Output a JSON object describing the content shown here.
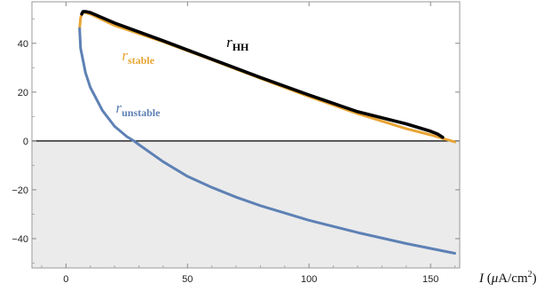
{
  "chart_data": {
    "type": "line",
    "xlabel_parts": [
      "I",
      " (",
      "μ",
      "A/cm",
      "2",
      ")"
    ],
    "xlim": [
      -14,
      162
    ],
    "ylim": [
      -52,
      57
    ],
    "x_ticks": [
      0,
      50,
      100,
      150
    ],
    "y_ticks": [
      40,
      20,
      0,
      -20,
      -40
    ],
    "tick_labels_x": [
      "0",
      "50",
      "100",
      "150"
    ],
    "tick_labels_y": [
      "40",
      "20",
      "0",
      "−20",
      "−40"
    ],
    "negative_region_color": "#ebebeb",
    "grid": false,
    "series": [
      {
        "name": "stable",
        "color": "#e8a534",
        "x": [
          5.6,
          6.0,
          7.0,
          10,
          20,
          40,
          60,
          80,
          100,
          120,
          140,
          150,
          155,
          158,
          160
        ],
        "y": [
          46.0,
          50.5,
          52.8,
          52.0,
          47.3,
          40.6,
          33.2,
          25.6,
          18.2,
          11.2,
          5.0,
          2.5,
          1.0,
          0.2,
          -0.4
        ]
      },
      {
        "name": "unstable",
        "color": "#5e81b5",
        "x": [
          5.6,
          6.0,
          8.0,
          10,
          15,
          20,
          25,
          28,
          30,
          40,
          50,
          60,
          70,
          80,
          90,
          100,
          120,
          140,
          160
        ],
        "y": [
          46.0,
          38.0,
          28.0,
          22.0,
          12.5,
          6.0,
          1.8,
          0.0,
          -1.5,
          -8.5,
          -14.5,
          -19.0,
          -23.0,
          -26.5,
          -29.5,
          -32.5,
          -37.5,
          -42.0,
          -46.0
        ]
      },
      {
        "name": "HH",
        "color": "#000000",
        "x": [
          6.5,
          7.0,
          8.0,
          10,
          20,
          40,
          60,
          80,
          100,
          120,
          140,
          150,
          153,
          155
        ],
        "y": [
          52.0,
          53.0,
          53.0,
          52.6,
          48.3,
          41.0,
          33.5,
          26.0,
          18.8,
          12.0,
          7.0,
          4.0,
          2.8,
          1.5
        ]
      }
    ],
    "annotations": [
      {
        "symbol": "r",
        "subscript": "HH",
        "x": 66,
        "y": 38.5,
        "color": "#000000"
      },
      {
        "symbol": "r",
        "subscript": "stable",
        "x": 23,
        "y": 33.0,
        "color": "#e8a534"
      },
      {
        "symbol": "r",
        "subscript": "unstable",
        "x": 20.5,
        "y": 11.5,
        "color": "#5e81b5"
      }
    ]
  }
}
